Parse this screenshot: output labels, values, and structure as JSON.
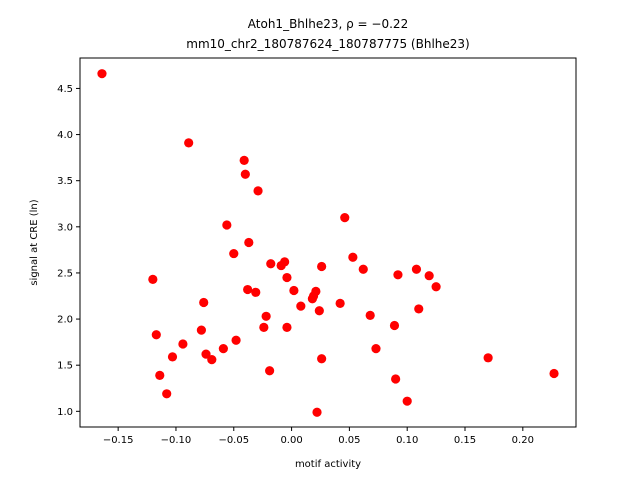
{
  "chart_data": {
    "type": "scatter",
    "title_line1": "Atoh1_Bhlhe23, ρ = −0.22",
    "title_line2": "mm10_chr2_180787624_180787775 (Bhlhe23)",
    "xlabel": "motif activity",
    "ylabel": "signal at CRE (ln)",
    "xlim": [
      -0.183,
      0.246
    ],
    "ylim": [
      0.83,
      4.83
    ],
    "xticks": [
      -0.15,
      -0.1,
      -0.05,
      0.0,
      0.05,
      0.1,
      0.15,
      0.2
    ],
    "xtick_labels": [
      "−0.15",
      "−0.10",
      "−0.05",
      "0.00",
      "0.05",
      "0.10",
      "0.15",
      "0.20"
    ],
    "yticks": [
      1.0,
      1.5,
      2.0,
      2.5,
      3.0,
      3.5,
      4.0,
      4.5
    ],
    "ytick_labels": [
      "1.0",
      "1.5",
      "2.0",
      "2.5",
      "3.0",
      "3.5",
      "4.0",
      "4.5"
    ],
    "grid": false,
    "marker_color": "#ff0000",
    "points": [
      {
        "x": -0.164,
        "y": 4.66
      },
      {
        "x": -0.089,
        "y": 3.91
      },
      {
        "x": -0.041,
        "y": 3.72
      },
      {
        "x": -0.04,
        "y": 3.57
      },
      {
        "x": -0.029,
        "y": 3.39
      },
      {
        "x": 0.046,
        "y": 3.1
      },
      {
        "x": -0.056,
        "y": 3.02
      },
      {
        "x": -0.037,
        "y": 2.83
      },
      {
        "x": -0.05,
        "y": 2.71
      },
      {
        "x": 0.053,
        "y": 2.67
      },
      {
        "x": -0.018,
        "y": 2.6
      },
      {
        "x": -0.006,
        "y": 2.62
      },
      {
        "x": -0.009,
        "y": 2.58
      },
      {
        "x": 0.026,
        "y": 2.57
      },
      {
        "x": 0.062,
        "y": 2.54
      },
      {
        "x": 0.108,
        "y": 2.54
      },
      {
        "x": 0.092,
        "y": 2.48
      },
      {
        "x": 0.119,
        "y": 2.47
      },
      {
        "x": -0.004,
        "y": 2.45
      },
      {
        "x": -0.12,
        "y": 2.43
      },
      {
        "x": 0.125,
        "y": 2.35
      },
      {
        "x": -0.038,
        "y": 2.32
      },
      {
        "x": 0.002,
        "y": 2.31
      },
      {
        "x": 0.021,
        "y": 2.3
      },
      {
        "x": -0.031,
        "y": 2.29
      },
      {
        "x": 0.019,
        "y": 2.25
      },
      {
        "x": 0.018,
        "y": 2.22
      },
      {
        "x": -0.076,
        "y": 2.18
      },
      {
        "x": 0.042,
        "y": 2.17
      },
      {
        "x": 0.008,
        "y": 2.14
      },
      {
        "x": 0.11,
        "y": 2.11
      },
      {
        "x": 0.024,
        "y": 2.09
      },
      {
        "x": 0.068,
        "y": 2.04
      },
      {
        "x": -0.022,
        "y": 2.03
      },
      {
        "x": 0.089,
        "y": 1.93
      },
      {
        "x": -0.024,
        "y": 1.91
      },
      {
        "x": -0.004,
        "y": 1.91
      },
      {
        "x": -0.078,
        "y": 1.88
      },
      {
        "x": -0.117,
        "y": 1.83
      },
      {
        "x": -0.048,
        "y": 1.77
      },
      {
        "x": -0.094,
        "y": 1.73
      },
      {
        "x": 0.073,
        "y": 1.68
      },
      {
        "x": -0.059,
        "y": 1.68
      },
      {
        "x": -0.074,
        "y": 1.62
      },
      {
        "x": -0.103,
        "y": 1.59
      },
      {
        "x": 0.17,
        "y": 1.58
      },
      {
        "x": 0.026,
        "y": 1.57
      },
      {
        "x": -0.069,
        "y": 1.56
      },
      {
        "x": -0.019,
        "y": 1.44
      },
      {
        "x": 0.227,
        "y": 1.41
      },
      {
        "x": -0.114,
        "y": 1.39
      },
      {
        "x": 0.09,
        "y": 1.35
      },
      {
        "x": -0.108,
        "y": 1.19
      },
      {
        "x": 0.1,
        "y": 1.11
      },
      {
        "x": 0.022,
        "y": 0.99
      }
    ]
  }
}
